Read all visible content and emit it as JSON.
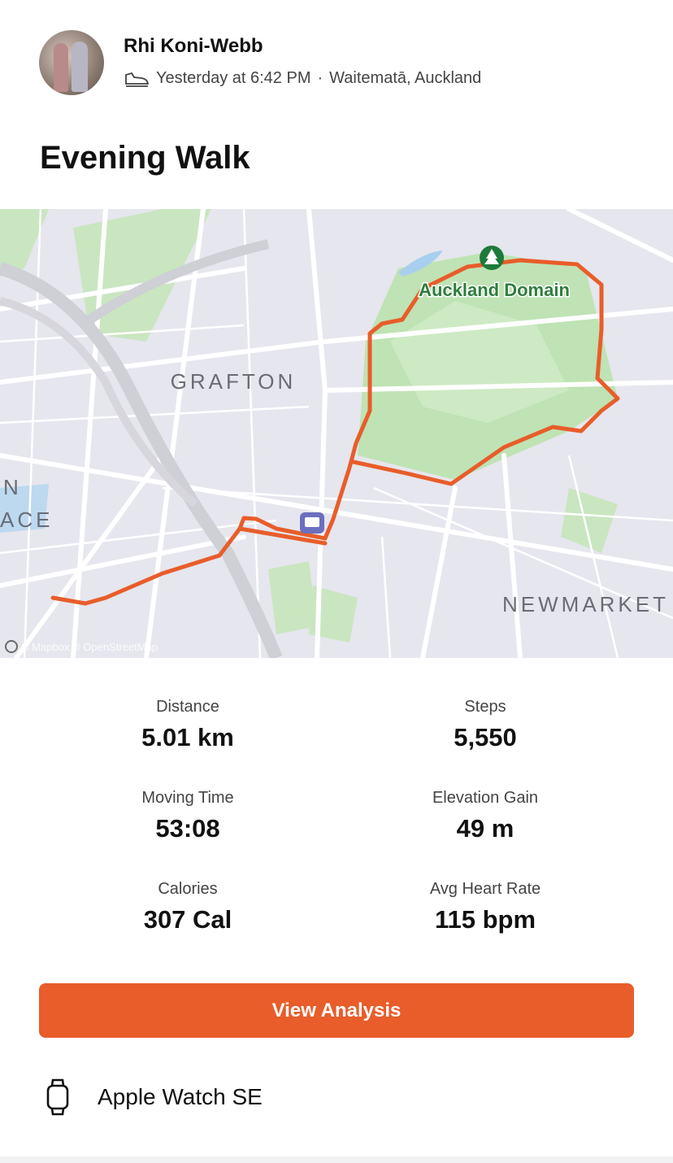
{
  "header": {
    "athlete_name": "Rhi Koni-Webb",
    "activity_icon": "shoe-icon",
    "timestamp": "Yesterday at 6:42 PM",
    "separator": "·",
    "location": "Waitematā, Auckland"
  },
  "activity": {
    "title": "Evening Walk"
  },
  "map": {
    "labels": {
      "park": "Auckland Domain",
      "suburb1": "GRAFTON",
      "suburb2": "NEWMARKET",
      "partial1": "N",
      "partial2": "ACE"
    },
    "attribution": "© Mapbox © OpenStreetMap",
    "route_color": "#e85d2a"
  },
  "stats": [
    {
      "label": "Distance",
      "value": "5.01 km"
    },
    {
      "label": "Steps",
      "value": "5,550"
    },
    {
      "label": "Moving Time",
      "value": "53:08"
    },
    {
      "label": "Elevation Gain",
      "value": "49 m"
    },
    {
      "label": "Calories",
      "value": "307 Cal"
    },
    {
      "label": "Avg Heart Rate",
      "value": "115 bpm"
    }
  ],
  "actions": {
    "view_analysis": "View Analysis"
  },
  "device": {
    "icon": "watch-icon",
    "name": "Apple Watch SE"
  },
  "colors": {
    "accent": "#e85d2a"
  }
}
